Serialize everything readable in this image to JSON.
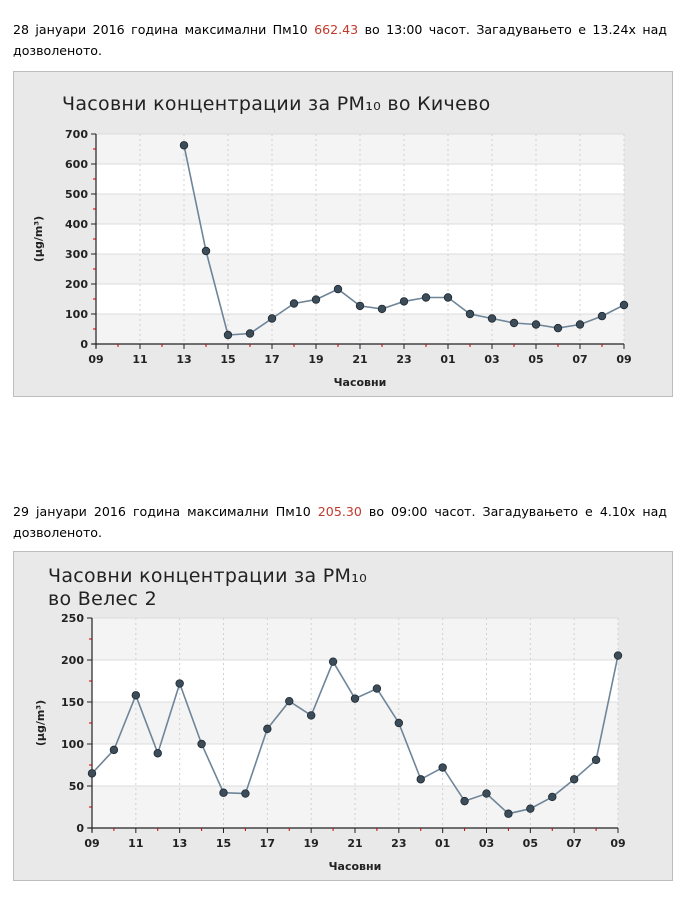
{
  "paragraphs": [
    {
      "text_before": "28 јануари 2016 година максимални Пм10 ",
      "value": "662.43",
      "text_after": " во 13:00 часот. Загадувањето е 13.24x над дозволеното."
    },
    {
      "text_before": "29 јануари 2016 година максимални Пм10 ",
      "value": "205.30",
      "text_after": " во 09:00 часот. Загадувањето е 4.10x над дозволеното."
    }
  ],
  "colors": {
    "value_highlight": "#c0392b",
    "line": "#6e8599",
    "marker": "#3c4c59",
    "tick_mark": "#cc0000",
    "band": "#f4f4f4",
    "frame_bg": "#e9e9e9"
  },
  "chart_data": [
    {
      "type": "line",
      "title": "Часовни концентрации за PM₁₀ во Кичево",
      "xlabel": "Часовни",
      "ylabel": "(µg/m³)",
      "ylim": [
        0,
        700
      ],
      "yticks": [
        0,
        100,
        200,
        300,
        400,
        500,
        600,
        700
      ],
      "xtick_labels": [
        "09",
        "11",
        "13",
        "15",
        "17",
        "19",
        "21",
        "23",
        "01",
        "03",
        "05",
        "07",
        "09"
      ],
      "points": [
        null,
        null,
        null,
        null,
        662.43,
        310,
        30,
        35,
        85,
        135,
        148,
        183,
        127,
        117,
        142,
        155,
        155,
        100,
        85,
        70,
        65,
        53,
        65,
        93,
        130
      ]
    },
    {
      "type": "line",
      "title": [
        "Часовни концентрации за PM₁₀",
        "во Велес 2"
      ],
      "xlabel": "Часовни",
      "ylabel": "(µg/m³)",
      "ylim": [
        0,
        250
      ],
      "yticks": [
        0,
        50,
        100,
        150,
        200,
        250
      ],
      "xtick_labels": [
        "09",
        "11",
        "13",
        "15",
        "17",
        "19",
        "21",
        "23",
        "01",
        "03",
        "05",
        "07",
        "09"
      ],
      "points": [
        65,
        93,
        158,
        89,
        172,
        100,
        42,
        41,
        118,
        151,
        134,
        198,
        154,
        166,
        125,
        58,
        72,
        32,
        41,
        17,
        23,
        37,
        58,
        81,
        205.3
      ]
    }
  ]
}
